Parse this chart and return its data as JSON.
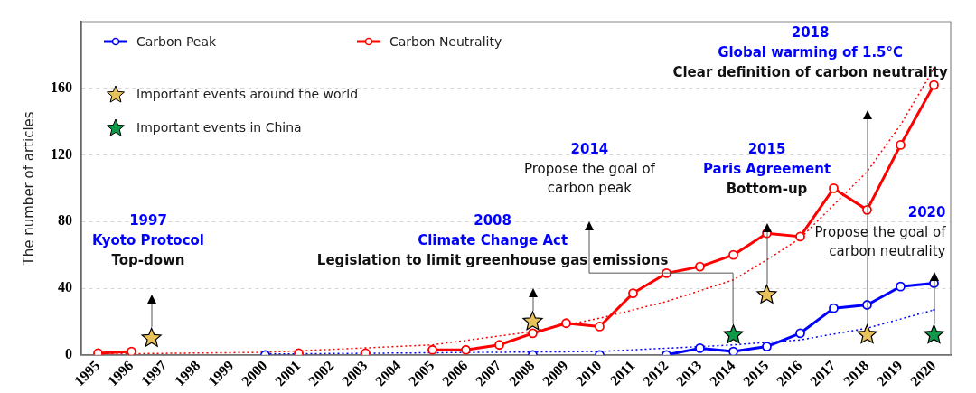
{
  "chart_data": {
    "type": "line",
    "ylabel": "The number of articles",
    "xlim": [
      1994.5,
      2020.5
    ],
    "xticks": [
      1995,
      1996,
      1997,
      1998,
      1999,
      2000,
      2001,
      2002,
      2003,
      2004,
      2005,
      2006,
      2007,
      2008,
      2009,
      2010,
      2011,
      2012,
      2013,
      2014,
      2015,
      2016,
      2017,
      2018,
      2019,
      2020
    ],
    "ylim": [
      0,
      200
    ],
    "yticks": [
      0,
      40,
      80,
      120,
      160
    ],
    "grid": "y",
    "legend": "top left",
    "marker": "circle",
    "x": [
      1995,
      1996,
      1997,
      1998,
      1999,
      2000,
      2001,
      2002,
      2003,
      2004,
      2005,
      2006,
      2007,
      2008,
      2009,
      2010,
      2011,
      2012,
      2013,
      2014,
      2015,
      2016,
      2017,
      2018,
      2019,
      2020
    ],
    "series": [
      {
        "name": "Carbon Peak",
        "color": "#0000ff",
        "values": [
          null,
          null,
          null,
          null,
          null,
          0,
          null,
          null,
          null,
          null,
          null,
          null,
          null,
          0,
          null,
          0,
          null,
          0,
          4,
          2,
          5,
          13,
          28,
          30,
          41,
          43
        ]
      },
      {
        "name": "Carbon Neutrality",
        "color": "#ff0000",
        "values": [
          1,
          2,
          null,
          null,
          null,
          null,
          1,
          null,
          1,
          null,
          3,
          3,
          6,
          13,
          19,
          17,
          37,
          49,
          53,
          60,
          73,
          71,
          100,
          87,
          126,
          162
        ]
      },
      {
        "color": "#ff0000",
        "marker": "none",
        "line_style": "dotted",
        "x": [
          1995,
          2000,
          2005,
          2008,
          2010,
          2012,
          2014,
          2015,
          2016,
          2017,
          2018,
          2019,
          2020
        ],
        "values": [
          0.5,
          1.5,
          6,
          14,
          22,
          32,
          45,
          57,
          70,
          90,
          110,
          138,
          172
        ]
      },
      {
        "color": "#0000ff",
        "marker": "none",
        "line_style": "dotted",
        "x": [
          2000,
          2010,
          2014,
          2016,
          2018,
          2020
        ],
        "values": [
          0.5,
          2,
          6,
          9,
          16,
          27
        ]
      },
      {
        "name": "Important events around the world",
        "type": "scatter",
        "marker": "star",
        "color": "#e8c25a",
        "x": [
          1996.6,
          2008,
          2015,
          2018
        ],
        "values": [
          10,
          20,
          36,
          12
        ]
      },
      {
        "name": "Important events in China",
        "type": "scatter",
        "marker": "star",
        "color": "#0f9a4a",
        "x": [
          2014,
          2020
        ],
        "values": [
          12,
          12
        ]
      }
    ],
    "annotations": [
      "1997\nKyoto Protocol\nTop-down",
      "2008\nClimate Change Act\nLegislation to limit greenhouse gas emissions",
      "2014\nPropose the goal of carbon peak",
      "2015\nParis Agreement\nBottom-up",
      "2018\nGlobal warming of 1.5°C\nClear definition of carbon neutrality",
      "2020\nPropose the goal of carbon neutrality"
    ]
  }
}
